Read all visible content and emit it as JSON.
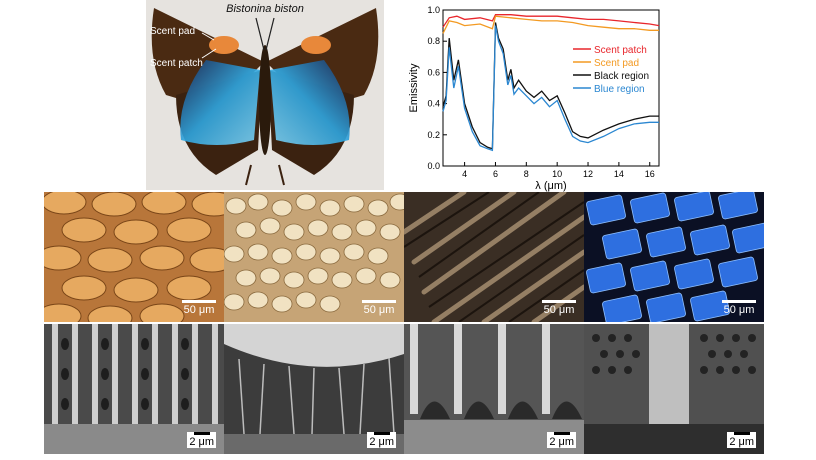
{
  "photo": {
    "species": "Bistonina biston",
    "label_scent_pad": "Scent pad",
    "label_scent_patch": "Scent patch"
  },
  "chart_data": {
    "type": "line",
    "title": "",
    "xlabel": "λ (μm)",
    "ylabel": "Emissivity",
    "xlim": [
      2.6,
      16.6
    ],
    "ylim": [
      0.0,
      1.0
    ],
    "xticks": [
      4,
      6,
      8,
      10,
      12,
      14,
      16
    ],
    "yticks": [
      0.0,
      0.2,
      0.4,
      0.6,
      0.8,
      1.0
    ],
    "grid": false,
    "legend_position": "right",
    "series": [
      {
        "name": "Scent patch",
        "color": "#e8262c",
        "x": [
          2.6,
          3.0,
          3.5,
          4.0,
          5.0,
          5.8,
          6.0,
          7.0,
          8.0,
          9.0,
          10.0,
          11.0,
          12.0,
          13.0,
          14.0,
          15.0,
          16.0,
          16.6
        ],
        "y": [
          0.89,
          0.95,
          0.96,
          0.94,
          0.95,
          0.93,
          0.97,
          0.97,
          0.96,
          0.96,
          0.96,
          0.95,
          0.94,
          0.94,
          0.93,
          0.92,
          0.91,
          0.9
        ]
      },
      {
        "name": "Scent pad",
        "color": "#f39a22",
        "x": [
          2.6,
          3.0,
          3.5,
          4.0,
          5.0,
          5.8,
          6.0,
          7.0,
          8.0,
          9.0,
          10.0,
          11.0,
          12.0,
          13.0,
          14.0,
          15.0,
          16.0,
          16.6
        ],
        "y": [
          0.85,
          0.93,
          0.92,
          0.9,
          0.91,
          0.88,
          0.96,
          0.95,
          0.94,
          0.93,
          0.93,
          0.92,
          0.9,
          0.89,
          0.88,
          0.88,
          0.87,
          0.87
        ]
      },
      {
        "name": "Black region",
        "color": "#111111",
        "x": [
          2.6,
          2.8,
          3.0,
          3.3,
          3.6,
          4.0,
          4.5,
          5.0,
          5.5,
          5.8,
          6.0,
          6.2,
          6.5,
          6.8,
          7.0,
          7.2,
          7.5,
          8.0,
          8.5,
          9.0,
          9.5,
          10.0,
          10.5,
          11.0,
          11.5,
          12.0,
          13.0,
          14.0,
          15.0,
          16.0,
          16.6
        ],
        "y": [
          0.38,
          0.45,
          0.82,
          0.55,
          0.68,
          0.4,
          0.25,
          0.15,
          0.12,
          0.11,
          0.92,
          0.82,
          0.75,
          0.55,
          0.62,
          0.5,
          0.55,
          0.48,
          0.44,
          0.48,
          0.42,
          0.45,
          0.34,
          0.22,
          0.19,
          0.18,
          0.23,
          0.27,
          0.3,
          0.32,
          0.32
        ]
      },
      {
        "name": "Blue region",
        "color": "#2b87d1",
        "x": [
          2.6,
          2.8,
          3.0,
          3.3,
          3.6,
          4.0,
          4.5,
          5.0,
          5.5,
          5.8,
          6.0,
          6.2,
          6.5,
          6.8,
          7.0,
          7.2,
          7.5,
          8.0,
          8.5,
          9.0,
          9.5,
          10.0,
          10.5,
          11.0,
          11.5,
          12.0,
          13.0,
          14.0,
          15.0,
          16.0,
          16.6
        ],
        "y": [
          0.35,
          0.42,
          0.76,
          0.5,
          0.64,
          0.37,
          0.22,
          0.13,
          0.11,
          0.1,
          0.9,
          0.8,
          0.72,
          0.52,
          0.58,
          0.46,
          0.5,
          0.45,
          0.4,
          0.44,
          0.38,
          0.42,
          0.3,
          0.19,
          0.16,
          0.15,
          0.19,
          0.24,
          0.27,
          0.28,
          0.28
        ]
      }
    ]
  },
  "micrographs": {
    "optical": [
      {
        "region": "Scent patch",
        "scale_label": "50 μm"
      },
      {
        "region": "Scent pad",
        "scale_label": "50 μm"
      },
      {
        "region": "Black region",
        "scale_label": "50 μm"
      },
      {
        "region": "Blue region",
        "scale_label": "50 μm"
      }
    ],
    "sem": [
      {
        "region": "Scent patch",
        "scale_label": "2 μm"
      },
      {
        "region": "Scent pad",
        "scale_label": "2 μm"
      },
      {
        "region": "Black region",
        "scale_label": "2 μm"
      },
      {
        "region": "Blue region",
        "scale_label": "2 μm"
      }
    ]
  }
}
